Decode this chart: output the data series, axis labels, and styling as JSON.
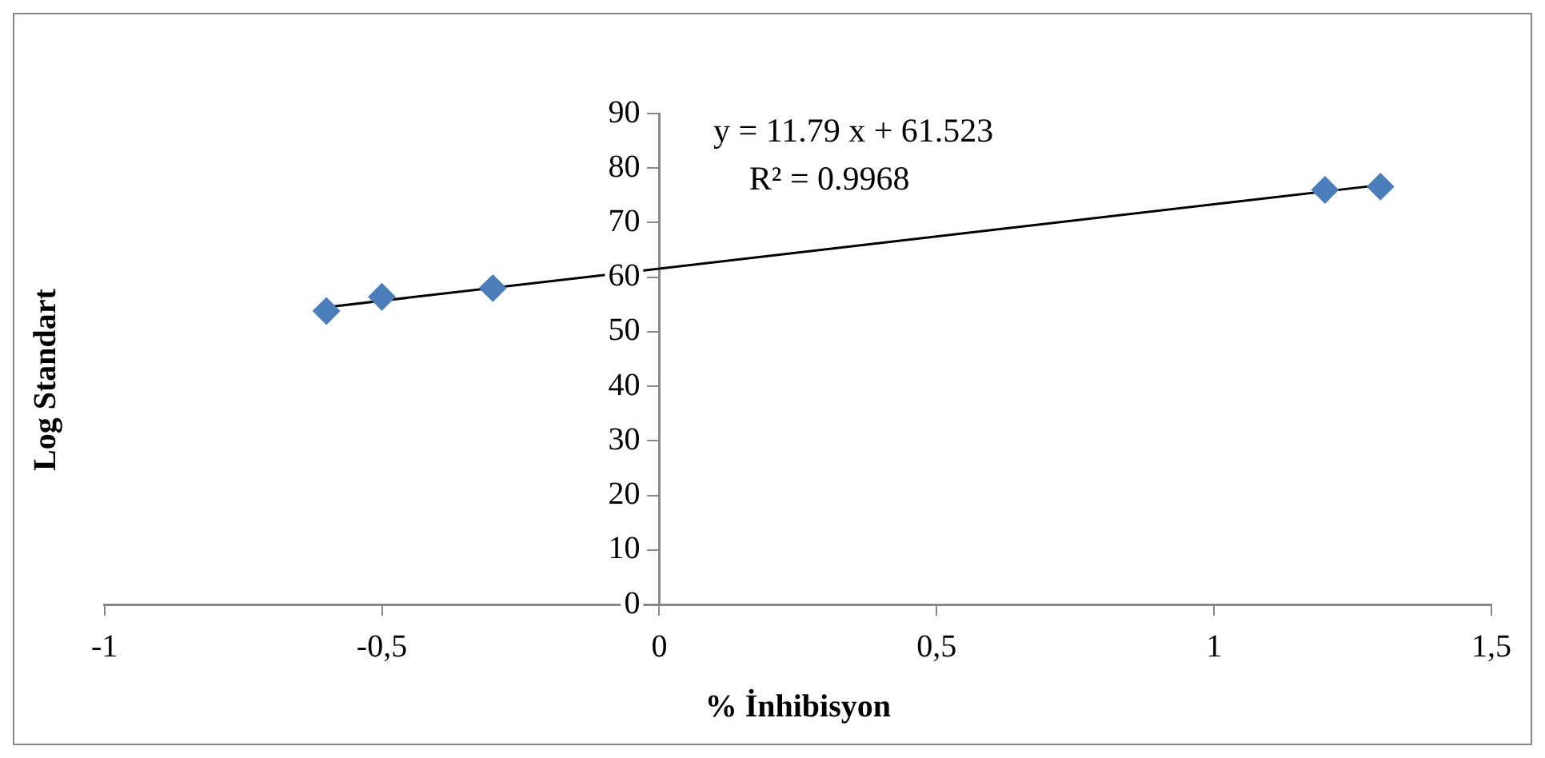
{
  "chart_data": {
    "type": "scatter",
    "xlabel": "% İnhibisyon",
    "ylabel": "Log Standart",
    "annotations": [
      "y = 11.79 x + 61.523",
      "R² = 0.9968"
    ],
    "series": [
      {
        "type": "scatter",
        "color": "#4a7ebb",
        "x": [
          -0.6,
          -0.5,
          -0.3,
          1.2,
          1.3
        ],
        "values": [
          53.8,
          56.4,
          58.0,
          76.0,
          76.6
        ],
        "marker": "diamond"
      },
      {
        "type": "line",
        "color": "#000000",
        "x": [
          -0.6,
          1.3
        ],
        "values": [
          54.5,
          76.9
        ],
        "marker": "none",
        "line_style": "solid"
      }
    ],
    "xlim": [
      -1,
      1.5
    ],
    "xticks": [
      -1,
      {
        "value": -0.5,
        "label": "-0,5"
      },
      0,
      {
        "value": 0.5,
        "label": "0,5"
      },
      1,
      {
        "value": 1.5,
        "label": "1,5"
      }
    ],
    "ylim": [
      0,
      90
    ],
    "yticks": [
      0,
      10,
      20,
      30,
      40,
      50,
      60,
      70,
      80,
      90
    ],
    "grid": false,
    "legend": false
  }
}
